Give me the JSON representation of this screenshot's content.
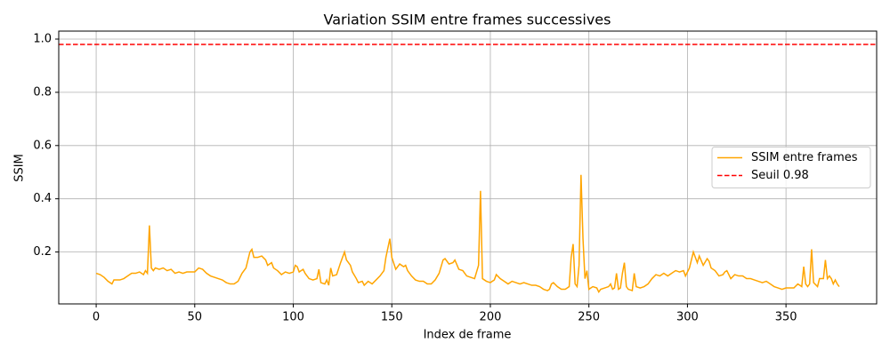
{
  "chart_data": {
    "type": "line",
    "title": "Variation SSIM entre frames successives",
    "xlabel": "Index de frame",
    "ylabel": "SSIM",
    "xlim": [
      -19,
      396
    ],
    "ylim": [
      0.005,
      1.03
    ],
    "xticks": [
      0,
      50,
      100,
      150,
      200,
      250,
      300,
      350
    ],
    "yticks": [
      0.2,
      0.4,
      0.6,
      0.8,
      {
        "value": 1.0,
        "label": "1.0"
      }
    ],
    "grid": true,
    "legend": "center right",
    "x": [
      0,
      2,
      4,
      6,
      8,
      9,
      12,
      14,
      16,
      18,
      20,
      22,
      24,
      25,
      26,
      27,
      28,
      29,
      30,
      32,
      34,
      36,
      38,
      40,
      42,
      44,
      46,
      48,
      50,
      52,
      54,
      56,
      58,
      60,
      62,
      64,
      66,
      68,
      70,
      72,
      74,
      76,
      78,
      79,
      80,
      82,
      84,
      86,
      87,
      89,
      90,
      92,
      94,
      96,
      98,
      100,
      101,
      102,
      103,
      105,
      106,
      108,
      110,
      112,
      113,
      114,
      116,
      117,
      118,
      119,
      120,
      122,
      124,
      126,
      127,
      129,
      130,
      132,
      133,
      135,
      136,
      138,
      140,
      142,
      144,
      146,
      147,
      149,
      150,
      152,
      154,
      156,
      157,
      158,
      160,
      162,
      164,
      166,
      168,
      170,
      172,
      174,
      176,
      177,
      179,
      181,
      182,
      184,
      186,
      188,
      190,
      192,
      194,
      195,
      196,
      198,
      200,
      202,
      203,
      205,
      207,
      209,
      211,
      213,
      215,
      217,
      219,
      221,
      223,
      225,
      227,
      229,
      230,
      231,
      232,
      234,
      236,
      238,
      240,
      241,
      242,
      243,
      244,
      245,
      246,
      247,
      248,
      249,
      250,
      252,
      254,
      255,
      256,
      258,
      260,
      261,
      262,
      263,
      264,
      265,
      266,
      267,
      268,
      269,
      270,
      272,
      273,
      274,
      276,
      278,
      280,
      282,
      284,
      286,
      288,
      290,
      292,
      294,
      296,
      298,
      299,
      301,
      303,
      305,
      306,
      308,
      310,
      311,
      312,
      314,
      316,
      318,
      319,
      320,
      322,
      324,
      326,
      328,
      330,
      332,
      334,
      336,
      338,
      340,
      342,
      344,
      346,
      348,
      350,
      352,
      354,
      356,
      357,
      358,
      359,
      360,
      361,
      362,
      363,
      364,
      366,
      367,
      369,
      370,
      371,
      372,
      373,
      374,
      375,
      376,
      377
    ],
    "series": [
      {
        "name": "SSIM entre frames",
        "color": "#ffa500",
        "values": [
          0.12,
          0.115,
          0.105,
          0.09,
          0.08,
          0.095,
          0.095,
          0.1,
          0.11,
          0.12,
          0.12,
          0.125,
          0.115,
          0.13,
          0.12,
          0.3,
          0.14,
          0.13,
          0.14,
          0.135,
          0.14,
          0.13,
          0.135,
          0.12,
          0.125,
          0.12,
          0.125,
          0.125,
          0.125,
          0.14,
          0.135,
          0.12,
          0.11,
          0.105,
          0.1,
          0.095,
          0.085,
          0.08,
          0.08,
          0.09,
          0.12,
          0.14,
          0.2,
          0.21,
          0.18,
          0.18,
          0.185,
          0.17,
          0.15,
          0.16,
          0.14,
          0.13,
          0.115,
          0.125,
          0.12,
          0.125,
          0.15,
          0.145,
          0.125,
          0.135,
          0.12,
          0.1,
          0.095,
          0.1,
          0.135,
          0.085,
          0.08,
          0.095,
          0.075,
          0.14,
          0.11,
          0.115,
          0.16,
          0.2,
          0.17,
          0.15,
          0.125,
          0.1,
          0.085,
          0.09,
          0.075,
          0.09,
          0.08,
          0.095,
          0.11,
          0.13,
          0.18,
          0.25,
          0.18,
          0.135,
          0.155,
          0.145,
          0.15,
          0.13,
          0.11,
          0.095,
          0.09,
          0.09,
          0.08,
          0.08,
          0.095,
          0.12,
          0.17,
          0.175,
          0.155,
          0.16,
          0.17,
          0.135,
          0.13,
          0.11,
          0.105,
          0.1,
          0.15,
          0.43,
          0.1,
          0.09,
          0.085,
          0.095,
          0.115,
          0.1,
          0.09,
          0.08,
          0.09,
          0.085,
          0.08,
          0.085,
          0.08,
          0.075,
          0.075,
          0.07,
          0.06,
          0.055,
          0.06,
          0.08,
          0.085,
          0.07,
          0.06,
          0.06,
          0.07,
          0.18,
          0.23,
          0.08,
          0.07,
          0.15,
          0.49,
          0.25,
          0.1,
          0.13,
          0.06,
          0.07,
          0.065,
          0.05,
          0.06,
          0.065,
          0.07,
          0.08,
          0.06,
          0.065,
          0.12,
          0.06,
          0.065,
          0.12,
          0.16,
          0.07,
          0.06,
          0.055,
          0.12,
          0.07,
          0.065,
          0.07,
          0.08,
          0.1,
          0.115,
          0.11,
          0.12,
          0.11,
          0.12,
          0.13,
          0.125,
          0.13,
          0.11,
          0.14,
          0.2,
          0.16,
          0.185,
          0.15,
          0.175,
          0.165,
          0.14,
          0.13,
          0.11,
          0.115,
          0.125,
          0.13,
          0.1,
          0.115,
          0.11,
          0.11,
          0.1,
          0.1,
          0.095,
          0.09,
          0.085,
          0.09,
          0.08,
          0.07,
          0.065,
          0.06,
          0.065,
          0.065,
          0.065,
          0.08,
          0.075,
          0.07,
          0.145,
          0.08,
          0.07,
          0.08,
          0.21,
          0.085,
          0.07,
          0.1,
          0.1,
          0.17,
          0.1,
          0.11,
          0.1,
          0.08,
          0.095,
          0.08,
          0.07
        ]
      },
      {
        "name": "Seuil 0.98",
        "color": "#ff0000",
        "linestyle": "dashed",
        "y": 0.98
      }
    ]
  }
}
